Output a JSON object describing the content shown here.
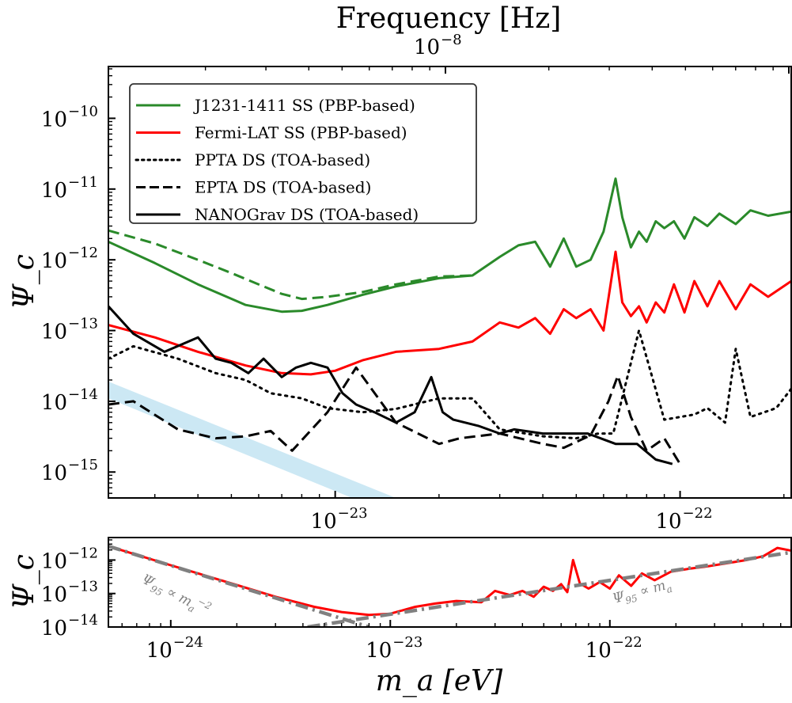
{
  "chart_data": [
    {
      "panel": "main",
      "type": "line",
      "xscale": "log",
      "yscale": "log",
      "xlabel": "m_a [eV]",
      "ylabel": "Ψ_c",
      "xlim": [
        2.2e-24,
        2.1e-22
      ],
      "ylim": [
        4.3e-16,
        5.4e-10
      ],
      "xticks": [
        {
          "value": 1e-23,
          "label": "10",
          "exp": "−23"
        },
        {
          "value": 1e-22,
          "label": "10",
          "exp": "−22"
        }
      ],
      "yticks": [
        {
          "value": 1e-10,
          "label": "10",
          "exp": "−10"
        },
        {
          "value": 1e-11,
          "label": "10",
          "exp": "−11"
        },
        {
          "value": 1e-12,
          "label": "10",
          "exp": "−12"
        },
        {
          "value": 1e-13,
          "label": "10",
          "exp": "−13"
        },
        {
          "value": 1e-14,
          "label": "10",
          "exp": "−14"
        },
        {
          "value": 1e-15,
          "label": "10",
          "exp": "−15"
        }
      ],
      "top_axis": {
        "title": "Frequency [Hz]",
        "ticks": [
          {
            "value": 1e-08,
            "label": "10",
            "exp": "−8"
          }
        ]
      },
      "legend": {
        "placement": "upper-left",
        "entries": [
          {
            "label": "J1231-1411 SS (PBP-based)",
            "color": "#2a8a2a",
            "style": "solid"
          },
          {
            "label": "Fermi-LAT SS (PBP-based)",
            "color": "#ff0000",
            "style": "solid"
          },
          {
            "label": "PPTA DS (TOA-based)",
            "color": "#000000",
            "style": "dotted"
          },
          {
            "label": "EPTA DS (TOA-based)",
            "color": "#000000",
            "style": "dashed"
          },
          {
            "label": "NANOGrav DS (TOA-based)",
            "color": "#000000",
            "style": "solid"
          }
        ]
      },
      "series": [
        {
          "name": "J1231-1411 SS (PBP-based)",
          "color": "#2a8a2a",
          "style": "solid",
          "x": [
            2.2e-24,
            3e-24,
            4e-24,
            5.5e-24,
            7e-24,
            8e-24,
            9.5e-24,
            1.2e-23,
            1.5e-23,
            2e-23,
            2.5e-23,
            3e-23,
            3.4e-23,
            3.8e-23,
            4.2e-23,
            4.6e-23,
            5e-23,
            5.5e-23,
            6e-23,
            6.5e-23,
            6.8e-23,
            7.2e-23,
            7.6e-23,
            8e-23,
            8.5e-23,
            9e-23,
            9.6e-23,
            1.03e-22,
            1.1e-22,
            1.2e-22,
            1.3e-22,
            1.45e-22,
            1.6e-22,
            1.8e-22,
            2.1e-22
          ],
          "y": [
            1.8e-12,
            9e-13,
            4.5e-13,
            2.3e-13,
            1.85e-13,
            1.9e-13,
            2.3e-13,
            3.2e-13,
            4.2e-13,
            5.5e-13,
            6e-13,
            1.1e-12,
            1.6e-12,
            1.8e-12,
            8e-13,
            2e-12,
            8e-13,
            1e-12,
            2.5e-12,
            1.4e-11,
            4e-12,
            1.5e-12,
            2.5e-12,
            1.8e-12,
            3.5e-12,
            2.8e-12,
            3.5e-12,
            2e-12,
            4e-12,
            3e-12,
            4.5e-12,
            3.2e-12,
            5e-12,
            4.2e-12,
            4.8e-12
          ]
        },
        {
          "name": "J1231-1411 SS (dashed variant)",
          "color": "#2a8a2a",
          "style": "dashed",
          "x": [
            2.2e-24,
            3e-24,
            4e-24,
            5e-24,
            6e-24,
            7e-24,
            8e-24,
            9.5e-24,
            1.2e-23,
            1.5e-23,
            2e-23,
            2.5e-23
          ],
          "y": [
            2.6e-12,
            1.7e-12,
            1e-12,
            6.5e-13,
            4.5e-13,
            3.3e-13,
            2.8e-13,
            3e-13,
            3.5e-13,
            4.5e-13,
            5.8e-13,
            6e-13
          ]
        },
        {
          "name": "Fermi-LAT SS (PBP-based)",
          "color": "#ff0000",
          "style": "solid",
          "x": [
            2.2e-24,
            3e-24,
            4e-24,
            5.5e-24,
            7e-24,
            8.5e-24,
            1e-23,
            1.2e-23,
            1.5e-23,
            2e-23,
            2.5e-23,
            3e-23,
            3.4e-23,
            3.8e-23,
            4.2e-23,
            4.6e-23,
            5e-23,
            5.5e-23,
            6e-23,
            6.5e-23,
            6.8e-23,
            7.2e-23,
            7.6e-23,
            8e-23,
            8.5e-23,
            9e-23,
            9.6e-23,
            1.03e-22,
            1.1e-22,
            1.2e-22,
            1.3e-22,
            1.45e-22,
            1.6e-22,
            1.8e-22,
            2.1e-22
          ],
          "y": [
            1.2e-13,
            8e-14,
            5e-14,
            3.2e-14,
            2.5e-14,
            2.4e-14,
            2.7e-14,
            3.8e-14,
            5e-14,
            5.5e-14,
            7e-14,
            1.3e-13,
            1.1e-13,
            1.5e-13,
            9e-14,
            2e-13,
            1.5e-13,
            2e-13,
            1e-13,
            1.3e-12,
            2.5e-13,
            1.6e-13,
            2.2e-13,
            1.3e-13,
            2.5e-13,
            1.8e-13,
            4.5e-13,
            1.8e-13,
            5e-13,
            2.2e-13,
            5e-13,
            2e-13,
            4.5e-13,
            3e-13,
            5e-13
          ]
        },
        {
          "name": "PPTA DS (TOA-based)",
          "color": "#000000",
          "style": "dotted",
          "x": [
            2.2e-24,
            2.6e-24,
            3.5e-24,
            4.5e-24,
            5.5e-24,
            6.5e-24,
            8e-24,
            9.5e-24,
            1.2e-23,
            1.5e-23,
            2e-23,
            2.5e-23,
            3e-23,
            4e-23,
            5e-23,
            5.8e-23,
            6.4e-23,
            7e-23,
            7.6e-23,
            9e-23,
            1.1e-22,
            1.2e-22,
            1.35e-22,
            1.45e-22,
            1.6e-22,
            1.9e-22,
            2.1e-22
          ],
          "y": [
            4e-14,
            6e-14,
            4e-14,
            2.5e-14,
            2e-14,
            1.3e-14,
            1.1e-14,
            8e-15,
            7e-15,
            7.8e-15,
            1.1e-14,
            1.1e-14,
            4e-15,
            3.2e-15,
            3e-15,
            3.5e-15,
            3.5e-15,
            2e-14,
            1e-13,
            5.5e-15,
            6.5e-15,
            8e-15,
            5e-15,
            5.5e-14,
            6e-15,
            8e-15,
            1.5e-14
          ]
        },
        {
          "name": "EPTA DS (TOA-based)",
          "color": "#000000",
          "style": "dashed",
          "x": [
            2.2e-24,
            2.6e-24,
            3.5e-24,
            4.5e-24,
            5.5e-24,
            6.5e-24,
            7.5e-24,
            9.5e-24,
            1.15e-23,
            1.5e-23,
            2e-23,
            2.3e-23,
            3e-23,
            4e-23,
            4.6e-23,
            5.5e-23,
            6.2e-23,
            6.6e-23,
            7.2e-23,
            8e-23,
            9e-23,
            1e-22
          ],
          "y": [
            9e-15,
            1e-14,
            4e-15,
            3e-15,
            3.2e-15,
            3.8e-15,
            2e-15,
            7e-15,
            3e-14,
            5e-15,
            2.5e-15,
            3e-15,
            3.5e-15,
            2.5e-15,
            2.2e-15,
            3.3e-15,
            1e-14,
            2.3e-14,
            6e-15,
            2e-15,
            3e-15,
            1.3e-15
          ]
        },
        {
          "name": "NANOGrav DS (TOA-based)",
          "color": "#000000",
          "style": "solid",
          "x": [
            2.2e-24,
            2.6e-24,
            3.2e-24,
            4e-24,
            4.5e-24,
            5e-24,
            5.6e-24,
            6.2e-24,
            7e-24,
            7.7e-24,
            8.5e-24,
            9.5e-24,
            1.05e-23,
            1.15e-23,
            1.3e-23,
            1.5e-23,
            1.7e-23,
            1.9e-23,
            2.05e-23,
            2.2e-23,
            2.6e-23,
            3e-23,
            3.3e-23,
            4e-23,
            4.7e-23,
            5.4e-23,
            6.5e-23,
            7.5e-23,
            8.5e-23,
            9.5e-23
          ],
          "y": [
            2.2e-13,
            9e-14,
            5e-14,
            8e-14,
            4e-14,
            3.5e-14,
            2.5e-14,
            4e-14,
            2.2e-14,
            3e-14,
            3.5e-14,
            3e-14,
            1.3e-14,
            9e-15,
            7e-15,
            5e-15,
            7e-15,
            2.2e-14,
            7e-15,
            5.5e-15,
            4.5e-15,
            3.5e-15,
            4e-15,
            3.5e-15,
            3.5e-15,
            3.5e-15,
            2.5e-15,
            2.5e-15,
            1.5e-15,
            1.3e-15
          ]
        }
      ],
      "band": {
        "name": "projected sensitivity band",
        "color": "#cce8f4",
        "x": [
          2.2e-24,
          1.5e-23
        ],
        "y_upper": [
          1.9e-14,
          4.3e-16
        ],
        "y_lower": [
          1.1e-14,
          2.4e-16
        ]
      }
    },
    {
      "panel": "inset",
      "type": "line",
      "xscale": "log",
      "yscale": "log",
      "xlabel": "m_a [eV]",
      "ylabel": "Ψ_c",
      "xlim": [
        5.2e-25,
        6.7e-22
      ],
      "ylim": [
        1e-14,
        4.7e-12
      ],
      "xticks": [
        {
          "value": 1e-24,
          "label": "10",
          "exp": "−24"
        },
        {
          "value": 1e-23,
          "label": "10",
          "exp": "−23"
        },
        {
          "value": 1e-22,
          "label": "10",
          "exp": "−22"
        }
      ],
      "yticks": [
        {
          "value": 1e-12,
          "label": "10",
          "exp": "−12"
        },
        {
          "value": 1e-13,
          "label": "10",
          "exp": "−13"
        },
        {
          "value": 1e-14,
          "label": "10",
          "exp": "−14"
        }
      ],
      "annotations": [
        {
          "text": "Ψ₉₅ ∝ mₐ⁻²",
          "main": "Ψ",
          "sub": "95",
          "rel": " ∝ m",
          "msub": "a",
          "msup": "−2"
        },
        {
          "text": "Ψ₉₅ ∝ mₐ",
          "main": "Ψ",
          "sub": "95",
          "rel": " ∝ m",
          "msub": "a",
          "msup": ""
        }
      ],
      "series": [
        {
          "name": "Fermi-LAT SS",
          "color": "#ff0000",
          "style": "solid",
          "x": [
            5.2e-25,
            1e-24,
            2e-24,
            3e-24,
            4.5e-24,
            6e-24,
            8e-24,
            1e-23,
            1.3e-23,
            1.6e-23,
            2e-23,
            2.6e-23,
            3e-23,
            3.5e-23,
            4e-23,
            4.5e-23,
            5e-23,
            5.5e-23,
            6e-23,
            6.4e-23,
            6.8e-23,
            7.3e-23,
            8e-23,
            9e-23,
            1e-22,
            1.1e-22,
            1.25e-22,
            1.4e-22,
            1.6e-22,
            1.9e-22,
            2.3e-22,
            2.8e-22,
            3.4e-22,
            4.2e-22,
            5e-22,
            5.8e-22,
            6.7e-22
          ],
          "y": [
            2.6e-12,
            7e-13,
            1.8e-13,
            8e-14,
            4e-14,
            2.8e-14,
            2.3e-14,
            2.5e-14,
            4e-14,
            5e-14,
            6e-14,
            5.5e-14,
            1.2e-13,
            9e-14,
            1.2e-13,
            8e-14,
            1.6e-13,
            1.2e-13,
            1.9e-13,
            1.1e-13,
            1e-12,
            2e-13,
            1.4e-13,
            2.2e-13,
            1.4e-13,
            3.5e-13,
            1.7e-13,
            4e-13,
            2.5e-13,
            4.5e-13,
            5.5e-13,
            6.5e-13,
            8e-13,
            1e-12,
            1.3e-12,
            2.3e-12,
            1.9e-12
          ]
        },
        {
          "name": "Ψ95 ∝ m_a^-2",
          "color": "#808080",
          "style": "dashdot",
          "x": [
            5.2e-25,
            8e-24
          ],
          "y": [
            2.6e-12,
            1e-14
          ]
        },
        {
          "name": "Ψ95 ∝ m_a",
          "color": "#808080",
          "style": "dashdot",
          "x": [
            4.2e-24,
            6.7e-22
          ],
          "y": [
            1e-14,
            1.7e-12
          ]
        }
      ]
    }
  ]
}
